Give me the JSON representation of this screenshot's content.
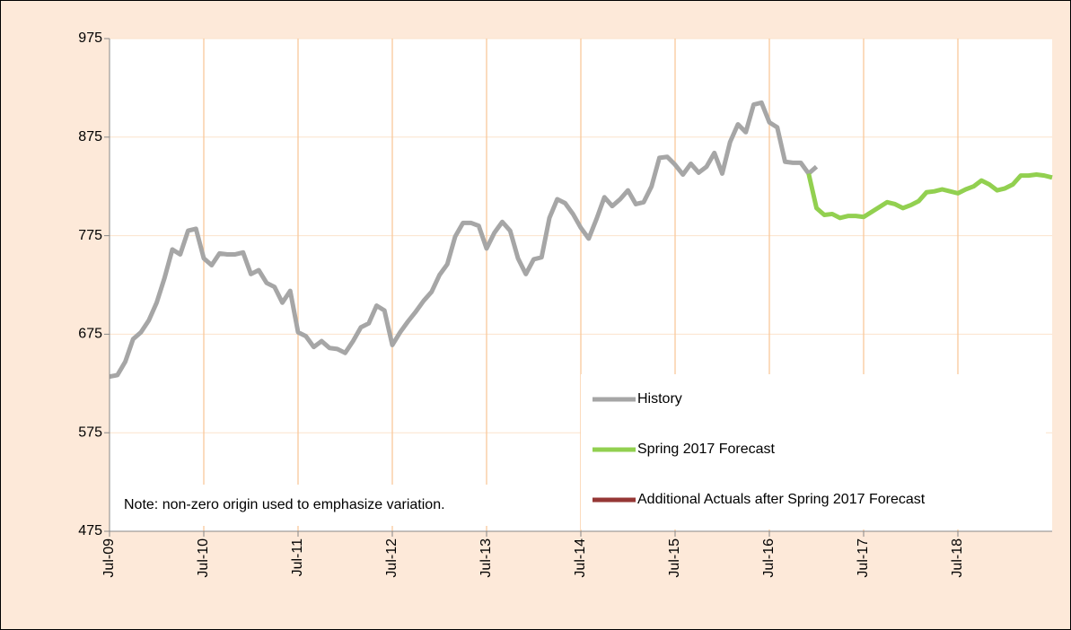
{
  "chart_data": {
    "type": "line",
    "annotation": "Note: non-zero origin used to emphasize variation.",
    "categories": [
      "Jul-09",
      null,
      null,
      null,
      null,
      null,
      null,
      null,
      null,
      null,
      null,
      null,
      "Jul-10",
      null,
      null,
      null,
      null,
      null,
      null,
      null,
      null,
      null,
      null,
      null,
      "Jul-11",
      null,
      null,
      null,
      null,
      null,
      null,
      null,
      null,
      null,
      null,
      null,
      "Jul-12",
      null,
      null,
      null,
      null,
      null,
      null,
      null,
      null,
      null,
      null,
      null,
      "Jul-13",
      null,
      null,
      null,
      null,
      null,
      null,
      null,
      null,
      null,
      null,
      null,
      "Jul-14",
      null,
      null,
      null,
      null,
      null,
      null,
      null,
      null,
      null,
      null,
      null,
      "Jul-15",
      null,
      null,
      null,
      null,
      null,
      null,
      null,
      null,
      null,
      null,
      null,
      "Jul-16",
      null,
      null,
      null,
      null,
      null,
      null,
      null,
      null,
      null,
      null,
      null,
      "Jul-17",
      null,
      null,
      null,
      null,
      null,
      null,
      null,
      null,
      null,
      null,
      null,
      "Jul-18",
      null,
      null,
      null,
      null,
      null,
      null,
      null,
      null,
      null,
      null,
      null,
      null
    ],
    "series": [
      {
        "name": "History",
        "color": "#a6a6a6",
        "values": [
          632,
          633.5,
          647,
          670,
          677,
          689,
          707,
          732,
          761,
          756,
          780,
          782,
          752,
          745,
          757,
          756,
          756,
          758,
          736,
          740,
          727,
          723,
          707,
          719,
          677,
          673,
          662,
          668,
          661,
          660,
          656,
          668,
          682,
          686,
          704,
          699,
          664,
          677,
          688,
          698,
          709,
          718,
          735,
          746,
          774,
          788,
          788,
          785,
          762,
          778,
          789,
          780,
          752,
          736,
          751,
          753,
          793,
          812,
          808,
          797,
          783,
          772,
          792,
          814,
          805,
          812,
          821,
          807,
          809,
          825,
          854,
          855,
          847,
          837,
          848,
          839,
          845,
          859,
          838,
          870,
          888,
          880,
          908,
          910,
          890,
          885,
          850,
          849,
          849,
          838,
          845,
          null,
          null,
          null,
          null,
          null,
          null,
          null,
          null,
          null,
          null,
          null,
          null,
          null,
          null,
          null,
          null,
          null,
          null,
          null,
          null,
          null,
          null,
          null,
          null,
          null,
          null,
          null,
          null,
          null,
          null
        ]
      },
      {
        "name": "Spring 2017 Forecast",
        "color": "#92d050",
        "values": [
          null,
          null,
          null,
          null,
          null,
          null,
          null,
          null,
          null,
          null,
          null,
          null,
          null,
          null,
          null,
          null,
          null,
          null,
          null,
          null,
          null,
          null,
          null,
          null,
          null,
          null,
          null,
          null,
          null,
          null,
          null,
          null,
          null,
          null,
          null,
          null,
          null,
          null,
          null,
          null,
          null,
          null,
          null,
          null,
          null,
          null,
          null,
          null,
          null,
          null,
          null,
          null,
          null,
          null,
          null,
          null,
          null,
          null,
          null,
          null,
          null,
          null,
          null,
          null,
          null,
          null,
          null,
          null,
          null,
          null,
          null,
          null,
          null,
          null,
          null,
          null,
          null,
          null,
          null,
          null,
          null,
          null,
          null,
          null,
          null,
          null,
          null,
          null,
          null,
          838,
          803,
          796,
          797,
          793,
          795,
          795,
          794,
          799,
          804,
          809,
          807,
          803,
          806,
          810,
          819,
          820,
          822,
          820,
          818,
          822,
          825,
          831,
          827,
          821,
          823,
          827,
          836,
          836,
          837,
          836,
          834
        ]
      },
      {
        "name": "Additional Actuals after Spring 2017 Forecast",
        "color": "#953735",
        "values": [
          null,
          null,
          null,
          null,
          null,
          null,
          null,
          null,
          null,
          null,
          null,
          null,
          null,
          null,
          null,
          null,
          null,
          null,
          null,
          null,
          null,
          null,
          null,
          null,
          null,
          null,
          null,
          null,
          null,
          null,
          null,
          null,
          null,
          null,
          null,
          null,
          null,
          null,
          null,
          null,
          null,
          null,
          null,
          null,
          null,
          null,
          null,
          null,
          null,
          null,
          null,
          null,
          null,
          null,
          null,
          null,
          null,
          null,
          null,
          null,
          null,
          null,
          null,
          null,
          null,
          null,
          null,
          null,
          null,
          null,
          null,
          null,
          null,
          null,
          null,
          null,
          null,
          null,
          null,
          null,
          null,
          null,
          null,
          null,
          null,
          null,
          null,
          null,
          null,
          null,
          null,
          null,
          null,
          null,
          null,
          null,
          null,
          null,
          null,
          null,
          null,
          null,
          null,
          null,
          null,
          null,
          null,
          null,
          null,
          null,
          null,
          null,
          null,
          null,
          null,
          null,
          null,
          null,
          null,
          null,
          null
        ]
      }
    ],
    "ylim": [
      475,
      975
    ],
    "yticks": [
      475,
      575,
      675,
      775,
      875,
      975
    ],
    "grid": true,
    "legend": "lower right"
  }
}
